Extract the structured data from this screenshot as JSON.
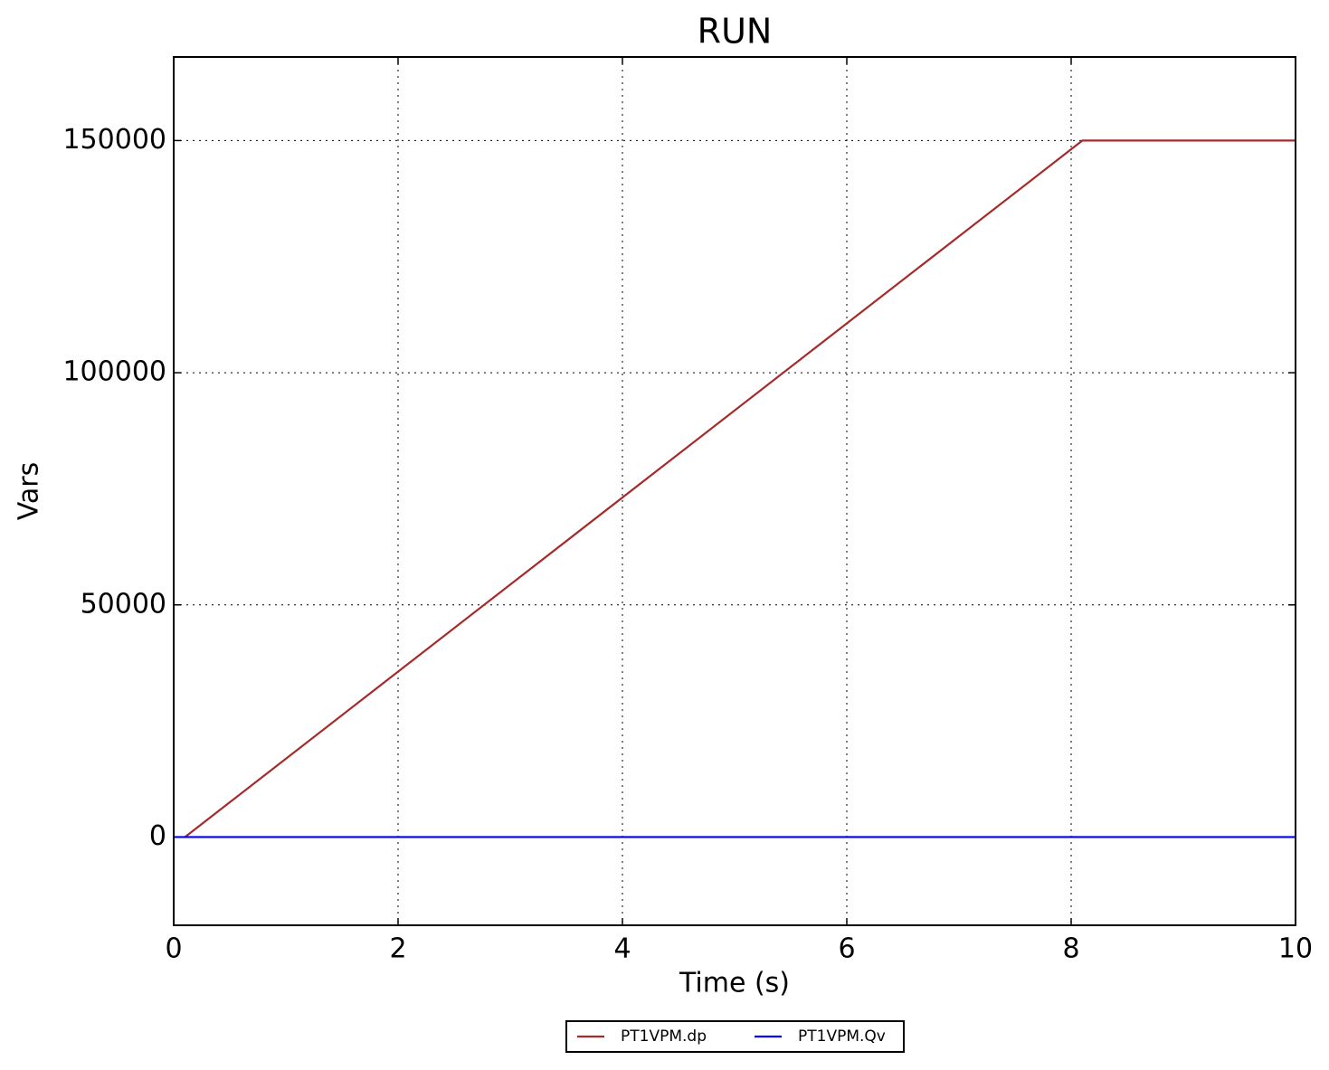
{
  "chart_data": {
    "type": "line",
    "title": "RUN",
    "x_label": "Time (s)",
    "y_label": "Vars",
    "xlim": [
      0,
      10
    ],
    "xticks": [
      0,
      2,
      4,
      6,
      8,
      10
    ],
    "ylim": [
      -19000,
      168000
    ],
    "yticks": [
      0,
      50000,
      100000,
      150000
    ],
    "grid": true,
    "legend": "below",
    "series": [
      {
        "name": "PT1VPM.dp",
        "color": "#a52a2a",
        "x": [
          0.1,
          8.1,
          10
        ],
        "values": [
          0,
          150000,
          150000
        ]
      },
      {
        "name": "PT1VPM.Qv",
        "color": "#0000ff",
        "x": [
          0,
          10
        ],
        "values": [
          0,
          0
        ]
      }
    ]
  }
}
